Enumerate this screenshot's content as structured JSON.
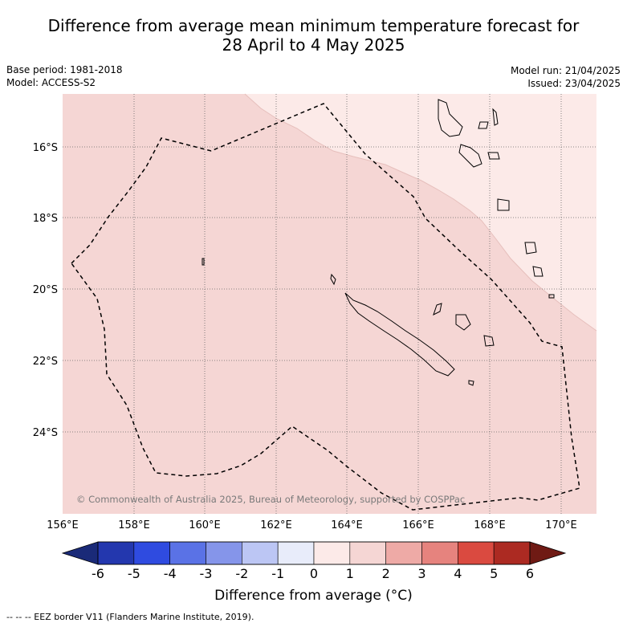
{
  "title": {
    "line1": "Difference from average mean minimum temperature forecast for",
    "line2": "28 April to 4 May 2025"
  },
  "meta": {
    "base_period": "Base period: 1981-2018",
    "model": "Model: ACCESS-S2",
    "model_run": "Model run: 21/04/2025",
    "issued": "Issued: 23/04/2025"
  },
  "map": {
    "lon_labels": [
      "156°E",
      "158°E",
      "160°E",
      "162°E",
      "164°E",
      "166°E",
      "168°E",
      "170°E"
    ],
    "lat_labels": [
      "16°S",
      "18°S",
      "20°S",
      "22°S",
      "24°S"
    ],
    "copyright": "© Commonwealth of Australia 2025, Bureau of Meteorology, supported by COSPPac",
    "fill_colors": {
      "zero_to_one": "#fceae8",
      "one_to_two": "#f5d6d4"
    }
  },
  "colorbar": {
    "ticks": [
      "-6",
      "-5",
      "-4",
      "-3",
      "-2",
      "-1",
      "0",
      "1",
      "2",
      "3",
      "4",
      "5",
      "6"
    ],
    "colors": [
      "#1a2a78",
      "#2337ae",
      "#2f4be0",
      "#5a72e6",
      "#8595ea",
      "#bcc6f4",
      "#e8ecfa",
      "#fceae8",
      "#f5d6d4",
      "#eeaaa6",
      "#e6837e",
      "#da4a40",
      "#ac2a22",
      "#6f1a14"
    ],
    "label": "Difference from average (°C)"
  },
  "footer": "--  --  -- EEZ border V11 (Flanders Marine Institute, 2019)."
}
